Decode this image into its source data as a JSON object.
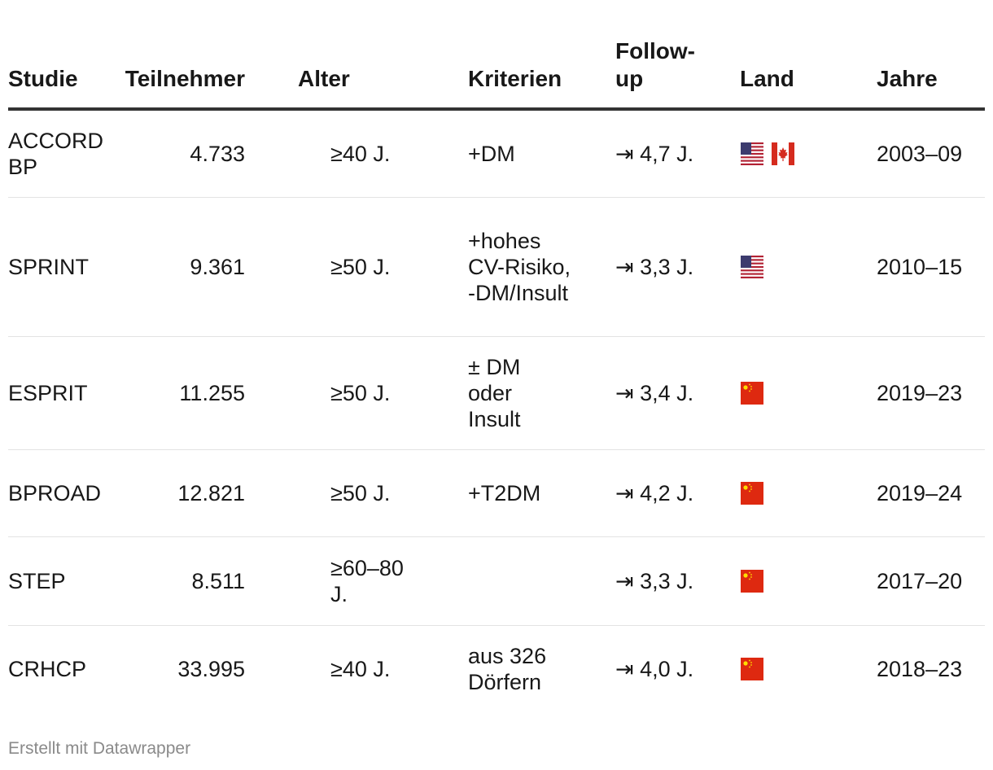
{
  "table": {
    "headers": [
      "Studie",
      "Teilnehmer",
      "Alter",
      "Kriterien",
      "Follow-up",
      "Land",
      "Jahre"
    ],
    "rows": [
      {
        "studie": "ACCORD BP",
        "teilnehmer": "4.733",
        "alter": "≥40 J.",
        "kriterien": "+DM",
        "followup": "⇥ 4,7 J.",
        "land": [
          "us-flag-icon",
          "ca-flag-icon"
        ],
        "jahre": "2003–09"
      },
      {
        "studie": "SPRINT",
        "teilnehmer": "9.361",
        "alter": "≥50 J.",
        "kriterien": "+hohes CV-Risiko, -DM/Insult",
        "followup": "⇥ 3,3 J.",
        "land": [
          "us-flag-icon"
        ],
        "jahre": "2010–15"
      },
      {
        "studie": "ESPRIT",
        "teilnehmer": "11.255",
        "alter": "≥50 J.",
        "kriterien": "± DM oder Insult",
        "followup": "⇥ 3,4 J.",
        "land": [
          "cn-flag-icon"
        ],
        "jahre": "2019–23"
      },
      {
        "studie": "BPROAD",
        "teilnehmer": "12.821",
        "alter": "≥50 J.",
        "kriterien": "+T2DM",
        "followup": "⇥ 4,2 J.",
        "land": [
          "cn-flag-icon"
        ],
        "jahre": "2019–24"
      },
      {
        "studie": "STEP",
        "teilnehmer": "8.511",
        "alter": "≥60–80 J.",
        "kriterien": "",
        "followup": "⇥ 3,3 J.",
        "land": [
          "cn-flag-icon"
        ],
        "jahre": "2017–20"
      },
      {
        "studie": "CRHCP",
        "teilnehmer": "33.995",
        "alter": "≥40 J.",
        "kriterien": "aus 326 Dörfern",
        "followup": "⇥ 4,0 J.",
        "land": [
          "cn-flag-icon"
        ],
        "jahre": "2018–23"
      }
    ]
  },
  "footer": {
    "credit": "Erstellt mit Datawrapper"
  }
}
